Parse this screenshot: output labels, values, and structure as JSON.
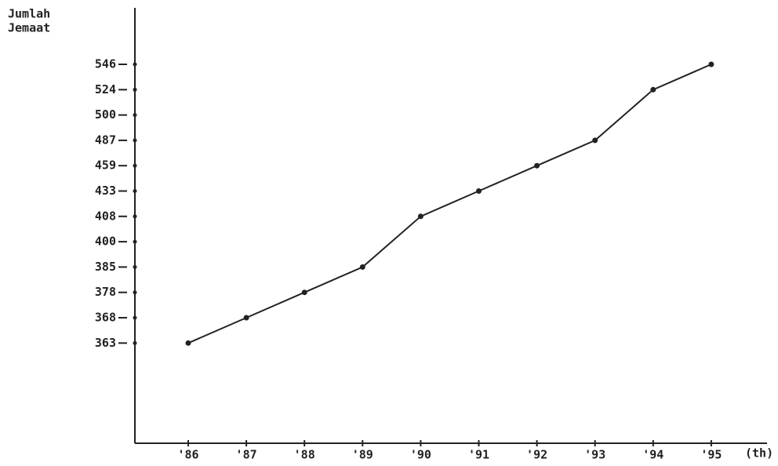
{
  "chart_data": {
    "type": "line",
    "y_label": [
      "Jumlah",
      "Jemaat"
    ],
    "x_label": "(th)",
    "categories": [
      "'86",
      "'87",
      "'88",
      "'89",
      "'90",
      "'91",
      "'92",
      "'93",
      "'94",
      "'95"
    ],
    "values": [
      363,
      368,
      378,
      385,
      408,
      433,
      459,
      487,
      524,
      546
    ],
    "color": "#222222",
    "yticks": [
      546,
      524,
      500,
      487,
      459,
      433,
      408,
      400,
      385,
      378,
      368,
      363
    ]
  }
}
